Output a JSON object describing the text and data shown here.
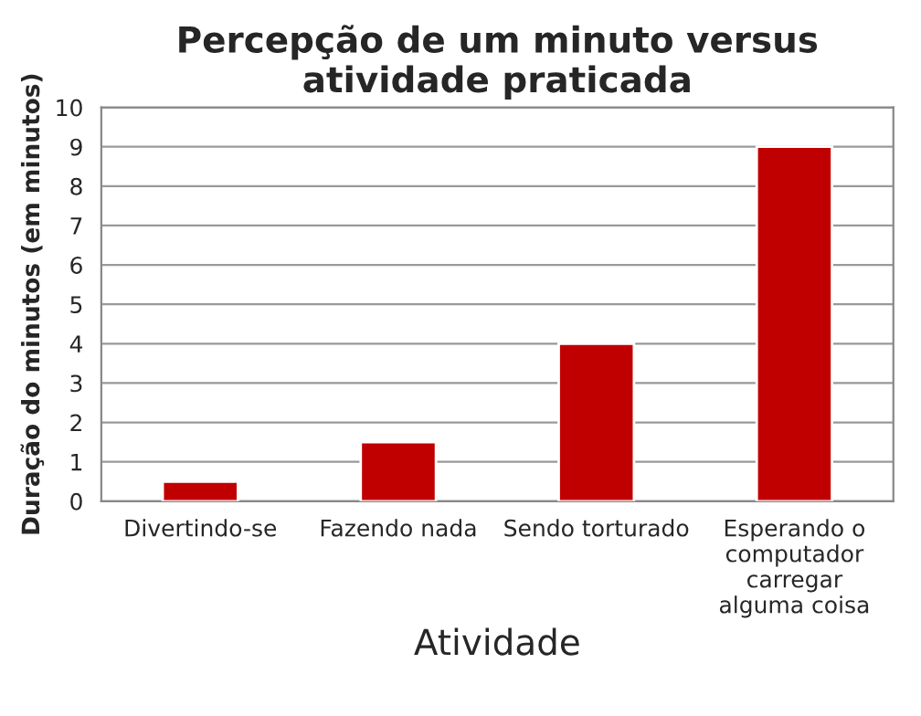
{
  "chart_data": {
    "type": "bar",
    "title": "Percepção de um minuto versus\natividade praticada",
    "xlabel": "Atividade",
    "ylabel": "Duração do minutos (em minutos)",
    "categories": [
      "Divertindo-se",
      "Fazendo nada",
      "Sendo torturado",
      "Esperando o\ncomputador\ncarregar\nalguma coisa"
    ],
    "values": [
      0.5,
      1.5,
      4,
      9
    ],
    "color": "#c00000",
    "ylim": [
      0,
      10
    ],
    "yticks": [
      0,
      1,
      2,
      3,
      4,
      5,
      6,
      7,
      8,
      9,
      10
    ],
    "grid": "y"
  }
}
